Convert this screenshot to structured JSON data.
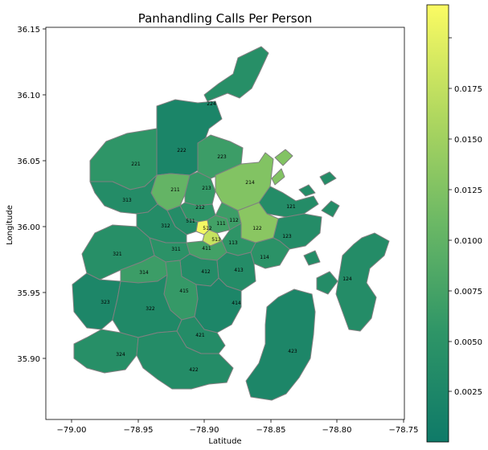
{
  "title": "Panhandling Calls Per Person",
  "xlabel": "Latitude",
  "ylabel": "Longitude",
  "x_ticks": [
    "−79.00",
    "−78.95",
    "−78.90",
    "−78.85",
    "−78.80",
    "−78.75"
  ],
  "y_ticks": [
    "36.15",
    "36.10",
    "36.05",
    "36.00",
    "35.95",
    "35.90"
  ],
  "colorbar_ticks": [
    "0.0025",
    "0.0050",
    "0.0075",
    "0.0100",
    "0.0125",
    "0.0150",
    "0.0175"
  ],
  "colors": {
    "low": "#15806a",
    "mid": "#4eaa64",
    "high": "#a9d163",
    "max": "#f7f95f",
    "border": "#808080"
  },
  "districts": [
    {
      "id": "224",
      "value": 0.0035
    },
    {
      "id": "222",
      "value": 0.0018
    },
    {
      "id": "223",
      "value": 0.0055
    },
    {
      "id": "221",
      "value": 0.0045
    },
    {
      "id": "214",
      "value": 0.0105
    },
    {
      "id": "211",
      "value": 0.0085
    },
    {
      "id": "213",
      "value": 0.005
    },
    {
      "id": "212",
      "value": 0.0045
    },
    {
      "id": "313",
      "value": 0.003
    },
    {
      "id": "121",
      "value": 0.003
    },
    {
      "id": "511",
      "value": 0.003
    },
    {
      "id": "312",
      "value": 0.003
    },
    {
      "id": "111",
      "value": 0.006
    },
    {
      "id": "112",
      "value": 0.0055
    },
    {
      "id": "122",
      "value": 0.011
    },
    {
      "id": "512",
      "value": 0.0185
    },
    {
      "id": "513",
      "value": 0.015
    },
    {
      "id": "123",
      "value": 0.003
    },
    {
      "id": "113",
      "value": 0.0045
    },
    {
      "id": "411",
      "value": 0.006
    },
    {
      "id": "311",
      "value": 0.004
    },
    {
      "id": "321",
      "value": 0.0035
    },
    {
      "id": "114",
      "value": 0.004
    },
    {
      "id": "314",
      "value": 0.0055
    },
    {
      "id": "412",
      "value": 0.003
    },
    {
      "id": "413",
      "value": 0.003
    },
    {
      "id": "124",
      "value": 0.003
    },
    {
      "id": "415",
      "value": 0.005
    },
    {
      "id": "323",
      "value": 0.002
    },
    {
      "id": "322",
      "value": 0.0025
    },
    {
      "id": "414",
      "value": 0.002
    },
    {
      "id": "421",
      "value": 0.003
    },
    {
      "id": "423",
      "value": 0.002
    },
    {
      "id": "324",
      "value": 0.0035
    },
    {
      "id": "422",
      "value": 0.003
    }
  ]
}
